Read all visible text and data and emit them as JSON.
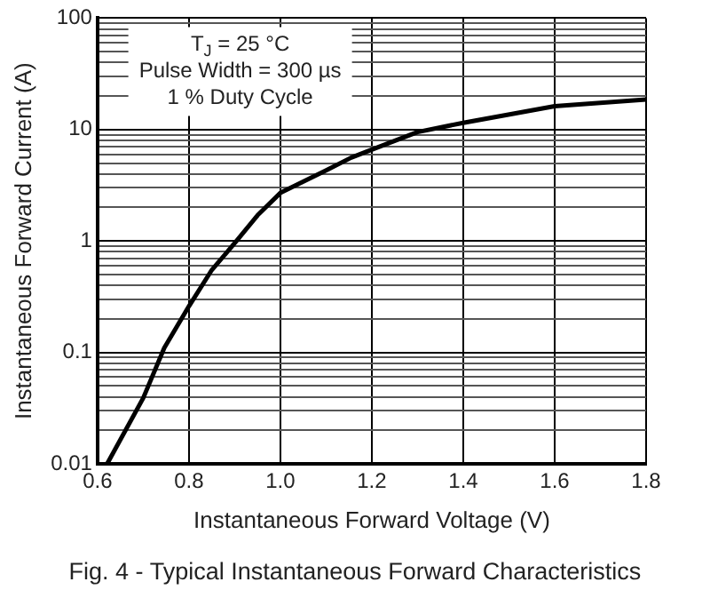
{
  "chart_data": {
    "type": "line",
    "xlabel": "Instantaneous Forward Voltage (V)",
    "ylabel": "Instantaneous Forward Current (A)",
    "annotations": [
      "T$_{J}$ = 25 °C",
      "Pulse Width = 300 µs",
      "1 % Duty Cycle",
      "Fig. 4 - Typical Instantaneous Forward Characteristics"
    ],
    "series": [
      {
        "color": "#000000",
        "x": [
          0.621,
          0.7,
          0.746,
          0.8,
          0.85,
          0.904,
          0.95,
          1.0,
          1.1,
          1.155,
          1.2,
          1.3,
          1.4,
          1.6,
          1.8
        ],
        "values": [
          0.01,
          0.039,
          0.11,
          0.26,
          0.55,
          1,
          1.7,
          2.7,
          4.3,
          5.6,
          6.6,
          9.5,
          11.5,
          16.2,
          18.6
        ]
      }
    ],
    "log": "y",
    "xlim": [
      0.6,
      1.8
    ],
    "ylim": [
      0.01,
      100
    ],
    "xticks": [
      0.6,
      0.8,
      {
        "value": 1,
        "label": "1.0"
      },
      1.2,
      1.4,
      1.6,
      1.8
    ],
    "yticks": [
      0.01,
      {
        "value": 0.02,
        "label": null
      },
      {
        "value": 0.03,
        "label": null
      },
      {
        "value": 0.04,
        "label": null
      },
      {
        "value": 0.05,
        "label": null
      },
      {
        "value": 0.06,
        "label": null
      },
      {
        "value": 0.07,
        "label": null
      },
      {
        "value": 0.08,
        "label": null
      },
      {
        "value": 0.09,
        "label": null
      },
      0.1,
      {
        "value": 0.2,
        "label": null
      },
      {
        "value": 0.3,
        "label": null
      },
      {
        "value": 0.4,
        "label": null
      },
      {
        "value": 0.5,
        "label": null
      },
      {
        "value": 0.6,
        "label": null
      },
      {
        "value": 0.7,
        "label": null
      },
      {
        "value": 0.8,
        "label": null
      },
      {
        "value": 0.9,
        "label": null
      },
      1,
      {
        "value": 2,
        "label": null
      },
      {
        "value": 3,
        "label": null
      },
      {
        "value": 4,
        "label": null
      },
      {
        "value": 5,
        "label": null
      },
      {
        "value": 6,
        "label": null
      },
      {
        "value": 7,
        "label": null
      },
      {
        "value": 8,
        "label": null
      },
      {
        "value": 9,
        "label": null
      },
      10,
      {
        "value": 20,
        "label": null
      },
      {
        "value": 30,
        "label": null
      },
      {
        "value": 40,
        "label": null
      },
      {
        "value": 50,
        "label": null
      },
      {
        "value": 60,
        "label": null
      },
      {
        "value": 70,
        "label": null
      },
      {
        "value": 80,
        "label": null
      },
      {
        "value": 90,
        "label": null
      },
      100
    ],
    "grid": true,
    "legend": false,
    "marker": "none",
    "line_style": "solid"
  }
}
